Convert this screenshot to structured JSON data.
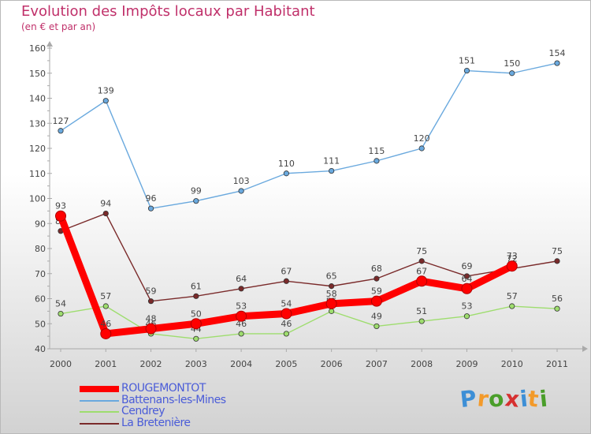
{
  "title": "Evolution des Impôts locaux par Habitant",
  "subtitle": "(en € et par an)",
  "logo": {
    "letters": [
      "P",
      "r",
      "o",
      "x",
      "i",
      "t",
      "i"
    ],
    "colors": [
      "#3d8fd6",
      "#f39a2a",
      "#4a9e2a",
      "#d63030",
      "#3d8fd6",
      "#f39a2a",
      "#4a9e2a"
    ]
  },
  "chart_data": {
    "type": "line",
    "title": "Evolution des Impôts locaux par Habitant",
    "subtitle": "(en € et par an)",
    "x": [
      "2000",
      "2001",
      "2002",
      "2003",
      "2004",
      "2005",
      "2006",
      "2007",
      "2008",
      "2009",
      "2010",
      "2011"
    ],
    "ylim": [
      40,
      160
    ],
    "yticks": [
      "40",
      "50",
      "60",
      "70",
      "80",
      "90",
      "100",
      "110",
      "120",
      "130",
      "140",
      "150",
      "160"
    ],
    "grid": false,
    "legend_position": "bottom-left",
    "series": [
      {
        "name": "ROUGEMONTOT",
        "color": "#ff0000",
        "values": [
          93,
          46,
          48,
          50,
          53,
          54,
          58,
          59,
          67,
          64,
          73,
          null
        ]
      },
      {
        "name": "Battenans-les-Mines",
        "color": "#6aa9de",
        "values": [
          127,
          139,
          96,
          99,
          103,
          110,
          111,
          115,
          120,
          151,
          150,
          154
        ]
      },
      {
        "name": "Cendrey",
        "color": "#9edd6e",
        "values": [
          54,
          57,
          46,
          44,
          46,
          46,
          55,
          49,
          51,
          53,
          57,
          56
        ]
      },
      {
        "name": "La Bretenière",
        "color": "#7a2a2a",
        "values": [
          87,
          94,
          59,
          61,
          64,
          67,
          65,
          68,
          75,
          69,
          72,
          75
        ]
      }
    ]
  }
}
